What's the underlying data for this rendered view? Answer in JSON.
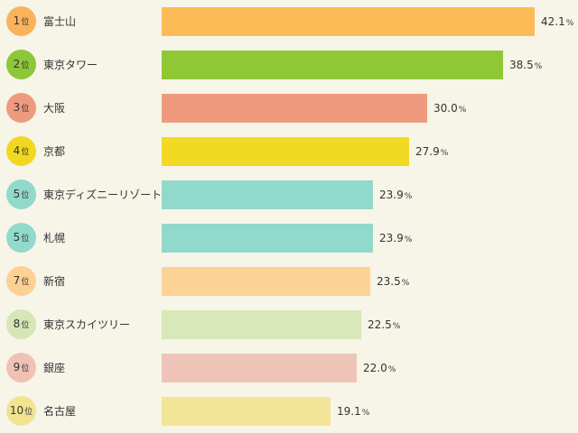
{
  "rank_suffix": "位",
  "unit": "%",
  "chart_data": {
    "type": "bar",
    "orientation": "horizontal",
    "xlim": [
      0,
      45
    ],
    "items": [
      {
        "rank": "1",
        "label": "富士山",
        "value": 42.1,
        "value_text": "42.1",
        "color": "#fdbb57",
        "badge_color": "#f9b35a"
      },
      {
        "rank": "2",
        "label": "東京タワー",
        "value": 38.5,
        "value_text": "38.5",
        "color": "#8fc735",
        "badge_color": "#8ec63a"
      },
      {
        "rank": "3",
        "label": "大阪",
        "value": 30.0,
        "value_text": "30.0",
        "color": "#ef9a7e",
        "badge_color": "#ee9a7e"
      },
      {
        "rank": "4",
        "label": "京都",
        "value": 27.9,
        "value_text": "27.9",
        "color": "#f2d924",
        "badge_color": "#f2d721"
      },
      {
        "rank": "5",
        "label": "東京ディズニーリゾート",
        "value": 23.9,
        "value_text": "23.9",
        "color": "#90d9cb",
        "badge_color": "#91d9ca"
      },
      {
        "rank": "5",
        "label": "札幌",
        "value": 23.9,
        "value_text": "23.9",
        "color": "#90d9cb",
        "badge_color": "#91d9ca"
      },
      {
        "rank": "7",
        "label": "新宿",
        "value": 23.5,
        "value_text": "23.5",
        "color": "#fdd395",
        "badge_color": "#fdd094"
      },
      {
        "rank": "8",
        "label": "東京スカイツリー",
        "value": 22.5,
        "value_text": "22.5",
        "color": "#d8e8b8",
        "badge_color": "#d6e6b4"
      },
      {
        "rank": "9",
        "label": "銀座",
        "value": 22.0,
        "value_text": "22.0",
        "color": "#efc4b8",
        "badge_color": "#efc2b5"
      },
      {
        "rank": "10",
        "label": "名古屋",
        "value": 19.1,
        "value_text": "19.1",
        "color": "#f3e597",
        "badge_color": "#f2e391"
      }
    ]
  }
}
